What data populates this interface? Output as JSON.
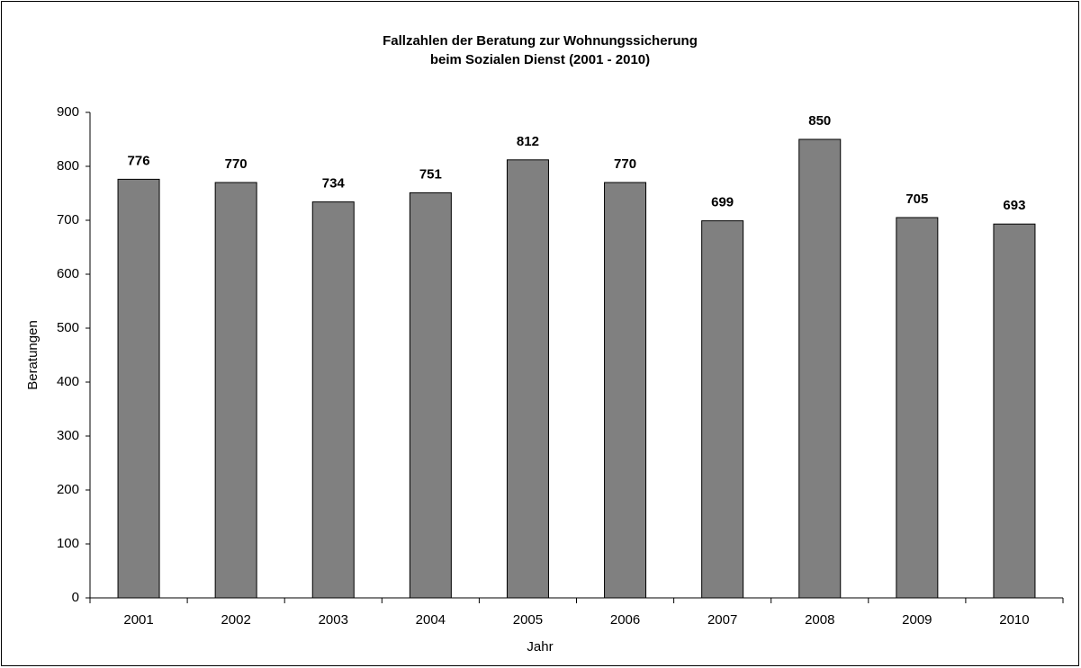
{
  "chart_data": {
    "type": "bar",
    "title": [
      "Fallzahlen der Beratung zur Wohnungssicherung",
      "beim Sozialen Dienst  (2001 - 2010)"
    ],
    "x_label": "Jahr",
    "y_label": "Beratungen",
    "categories": [
      "2001",
      "2002",
      "2003",
      "2004",
      "2005",
      "2006",
      "2007",
      "2008",
      "2009",
      "2010"
    ],
    "values": [
      776,
      770,
      734,
      751,
      812,
      770,
      699,
      850,
      705,
      693
    ],
    "color": "#808080",
    "ylim": [
      0,
      900
    ],
    "yticks": [
      0,
      100,
      200,
      300,
      400,
      500,
      600,
      700,
      800,
      900
    ],
    "grid": false
  }
}
